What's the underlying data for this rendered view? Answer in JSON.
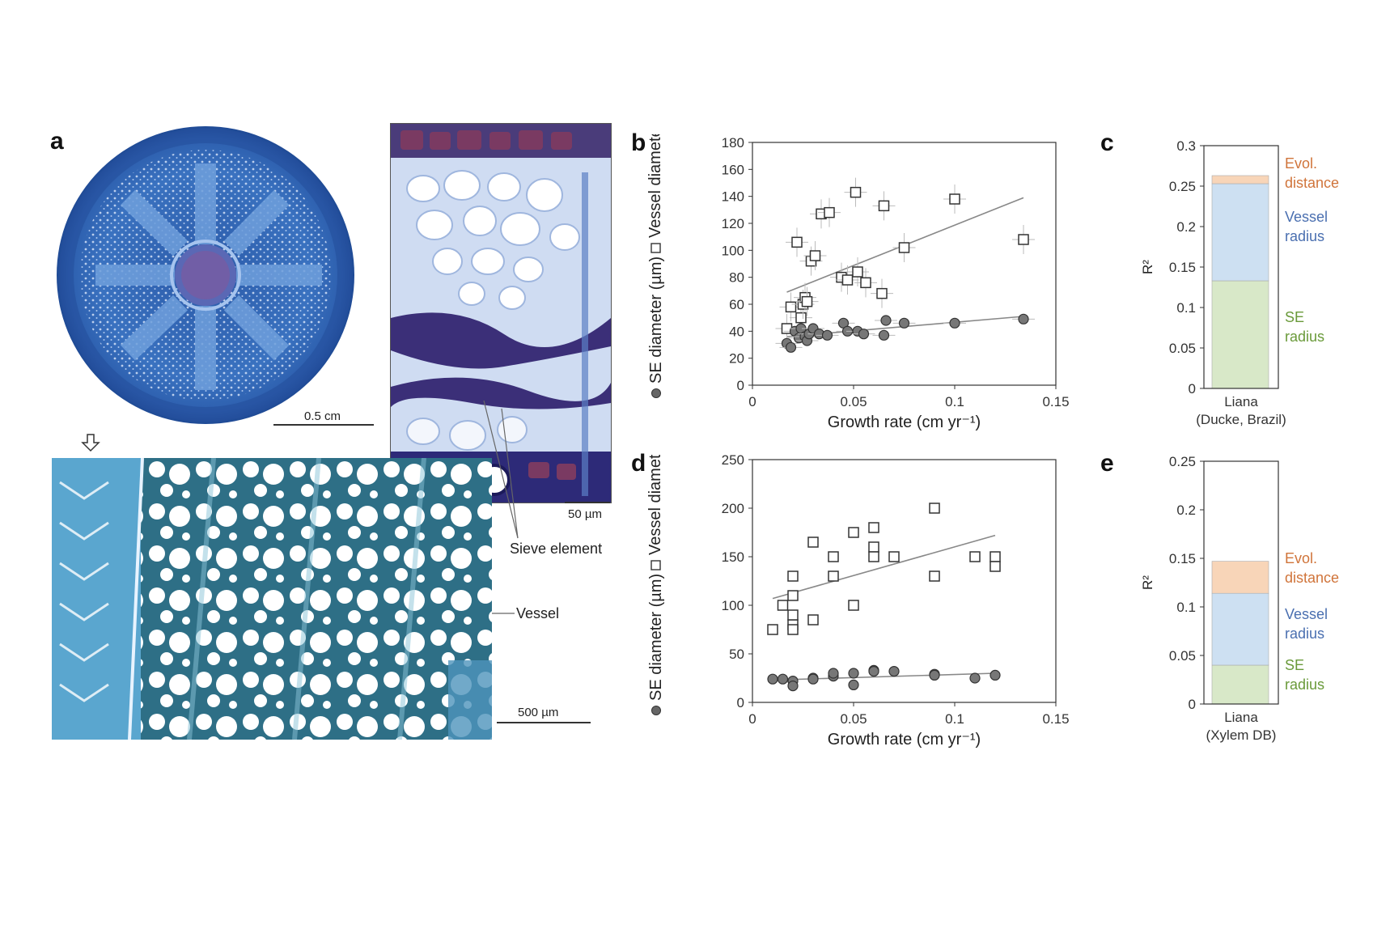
{
  "panel_a": {
    "letter": "a",
    "scale_stem": "0.5 cm",
    "scale_phloem": "50 µm",
    "scale_wood": "500 µm",
    "label_sieve": "Sieve element",
    "label_vessel": "Vessel"
  },
  "chart_data": [
    {
      "panel": "b",
      "type": "scatter",
      "xlabel": "Growth rate (cm yr⁻¹)",
      "ylabel_se": "SE diameter (µm)",
      "ylabel_vessel": "Vessel diameter (µm)",
      "xlim": [
        0,
        0.15
      ],
      "ylim": [
        0,
        180
      ],
      "xticks": [
        "0",
        "0.05",
        "0.1",
        "0.15"
      ],
      "yticks": [
        "0",
        "20",
        "40",
        "60",
        "80",
        "100",
        "120",
        "140",
        "160",
        "180"
      ],
      "error_bars": true,
      "series": [
        {
          "name": "Vessel",
          "marker": "square",
          "points": [
            [
              0.017,
              42
            ],
            [
              0.019,
              58
            ],
            [
              0.022,
              106
            ],
            [
              0.024,
              50
            ],
            [
              0.025,
              60
            ],
            [
              0.026,
              65
            ],
            [
              0.027,
              62
            ],
            [
              0.029,
              92
            ],
            [
              0.031,
              96
            ],
            [
              0.034,
              127
            ],
            [
              0.038,
              128
            ],
            [
              0.044,
              80
            ],
            [
              0.047,
              78
            ],
            [
              0.051,
              143
            ],
            [
              0.052,
              84
            ],
            [
              0.056,
              76
            ],
            [
              0.064,
              68
            ],
            [
              0.065,
              133
            ],
            [
              0.075,
              102
            ],
            [
              0.1,
              138
            ],
            [
              0.134,
              108
            ]
          ],
          "fit": [
            [
              0.017,
              69
            ],
            [
              0.134,
              139
            ]
          ]
        },
        {
          "name": "SE",
          "marker": "circle",
          "points": [
            [
              0.017,
              31
            ],
            [
              0.019,
              28
            ],
            [
              0.021,
              40
            ],
            [
              0.023,
              35
            ],
            [
              0.024,
              42
            ],
            [
              0.026,
              36
            ],
            [
              0.027,
              33
            ],
            [
              0.028,
              38
            ],
            [
              0.03,
              42
            ],
            [
              0.033,
              38
            ],
            [
              0.037,
              37
            ],
            [
              0.045,
              46
            ],
            [
              0.047,
              40
            ],
            [
              0.052,
              40
            ],
            [
              0.055,
              38
            ],
            [
              0.065,
              37
            ],
            [
              0.066,
              48
            ],
            [
              0.075,
              46
            ],
            [
              0.1,
              46
            ],
            [
              0.134,
              49
            ]
          ],
          "fit": [
            [
              0.017,
              36
            ],
            [
              0.134,
              51
            ]
          ]
        }
      ]
    },
    {
      "panel": "c",
      "type": "bar",
      "ylabel": "R²",
      "ylim": [
        0,
        0.3
      ],
      "yticks": [
        "0",
        "0.05",
        "0.1",
        "0.15",
        "0.2",
        "0.25",
        "0.3"
      ],
      "category_line1": "Liana",
      "category_line2": "(Ducke, Brazil)",
      "segments": [
        {
          "name": "SE radius",
          "label_line1": "SE",
          "label_line2": "radius",
          "value": 0.133,
          "color": "#d8e8c8",
          "label_color": "#6a9a3a"
        },
        {
          "name": "Vessel radius",
          "label_line1": "Vessel",
          "label_line2": "radius",
          "value": 0.12,
          "color": "#cde0f2",
          "label_color": "#4a6fb0"
        },
        {
          "name": "Evol. distance",
          "label_line1": "Evol.",
          "label_line2": "distance",
          "value": 0.01,
          "color": "#f8d5b8",
          "label_color": "#d0743a"
        }
      ]
    },
    {
      "panel": "d",
      "type": "scatter",
      "xlabel": "Growth rate (cm yr⁻¹)",
      "ylabel_se": "SE diameter (µm)",
      "ylabel_vessel": "Vessel diameter (µm)",
      "xlim": [
        0,
        0.15
      ],
      "ylim": [
        0,
        250
      ],
      "xticks": [
        "0",
        "0.05",
        "0.1",
        "0.15"
      ],
      "yticks": [
        "0",
        "50",
        "100",
        "150",
        "200",
        "250"
      ],
      "error_bars": false,
      "series": [
        {
          "name": "Vessel",
          "marker": "square",
          "points": [
            [
              0.01,
              75
            ],
            [
              0.015,
              100
            ],
            [
              0.02,
              80
            ],
            [
              0.02,
              75
            ],
            [
              0.02,
              90
            ],
            [
              0.02,
              110
            ],
            [
              0.02,
              130
            ],
            [
              0.03,
              165
            ],
            [
              0.03,
              85
            ],
            [
              0.04,
              150
            ],
            [
              0.04,
              130
            ],
            [
              0.05,
              100
            ],
            [
              0.05,
              175
            ],
            [
              0.06,
              180
            ],
            [
              0.06,
              160
            ],
            [
              0.06,
              150
            ],
            [
              0.07,
              150
            ],
            [
              0.09,
              200
            ],
            [
              0.09,
              130
            ],
            [
              0.11,
              150
            ],
            [
              0.12,
              150
            ],
            [
              0.12,
              140
            ]
          ],
          "fit": [
            [
              0.01,
              107
            ],
            [
              0.12,
              172
            ]
          ]
        },
        {
          "name": "SE",
          "marker": "circle",
          "points": [
            [
              0.01,
              24
            ],
            [
              0.015,
              24
            ],
            [
              0.02,
              22
            ],
            [
              0.02,
              17
            ],
            [
              0.03,
              25
            ],
            [
              0.03,
              24
            ],
            [
              0.04,
              27
            ],
            [
              0.04,
              30
            ],
            [
              0.05,
              18
            ],
            [
              0.05,
              30
            ],
            [
              0.06,
              33
            ],
            [
              0.06,
              32
            ],
            [
              0.07,
              32
            ],
            [
              0.09,
              29
            ],
            [
              0.09,
              28
            ],
            [
              0.11,
              25
            ],
            [
              0.12,
              28
            ]
          ],
          "fit": [
            [
              0.01,
              23
            ],
            [
              0.12,
              30
            ]
          ]
        }
      ]
    },
    {
      "panel": "e",
      "type": "bar",
      "ylabel": "R²",
      "ylim": [
        0,
        0.25
      ],
      "yticks": [
        "0",
        "0.05",
        "0.1",
        "0.15",
        "0.2",
        "0.25"
      ],
      "category_line1": "Liana",
      "category_line2": "(Xylem DB)",
      "segments": [
        {
          "name": "SE radius",
          "label_line1": "SE",
          "label_line2": "radius",
          "value": 0.04,
          "color": "#d8e8c8",
          "label_color": "#6a9a3a"
        },
        {
          "name": "Vessel radius",
          "label_line1": "Vessel",
          "label_line2": "radius",
          "value": 0.074,
          "color": "#cde0f2",
          "label_color": "#4a6fb0"
        },
        {
          "name": "Evol. distance",
          "label_line1": "Evol.",
          "label_line2": "distance",
          "value": 0.033,
          "color": "#f8d5b8",
          "label_color": "#d0743a"
        }
      ]
    }
  ]
}
